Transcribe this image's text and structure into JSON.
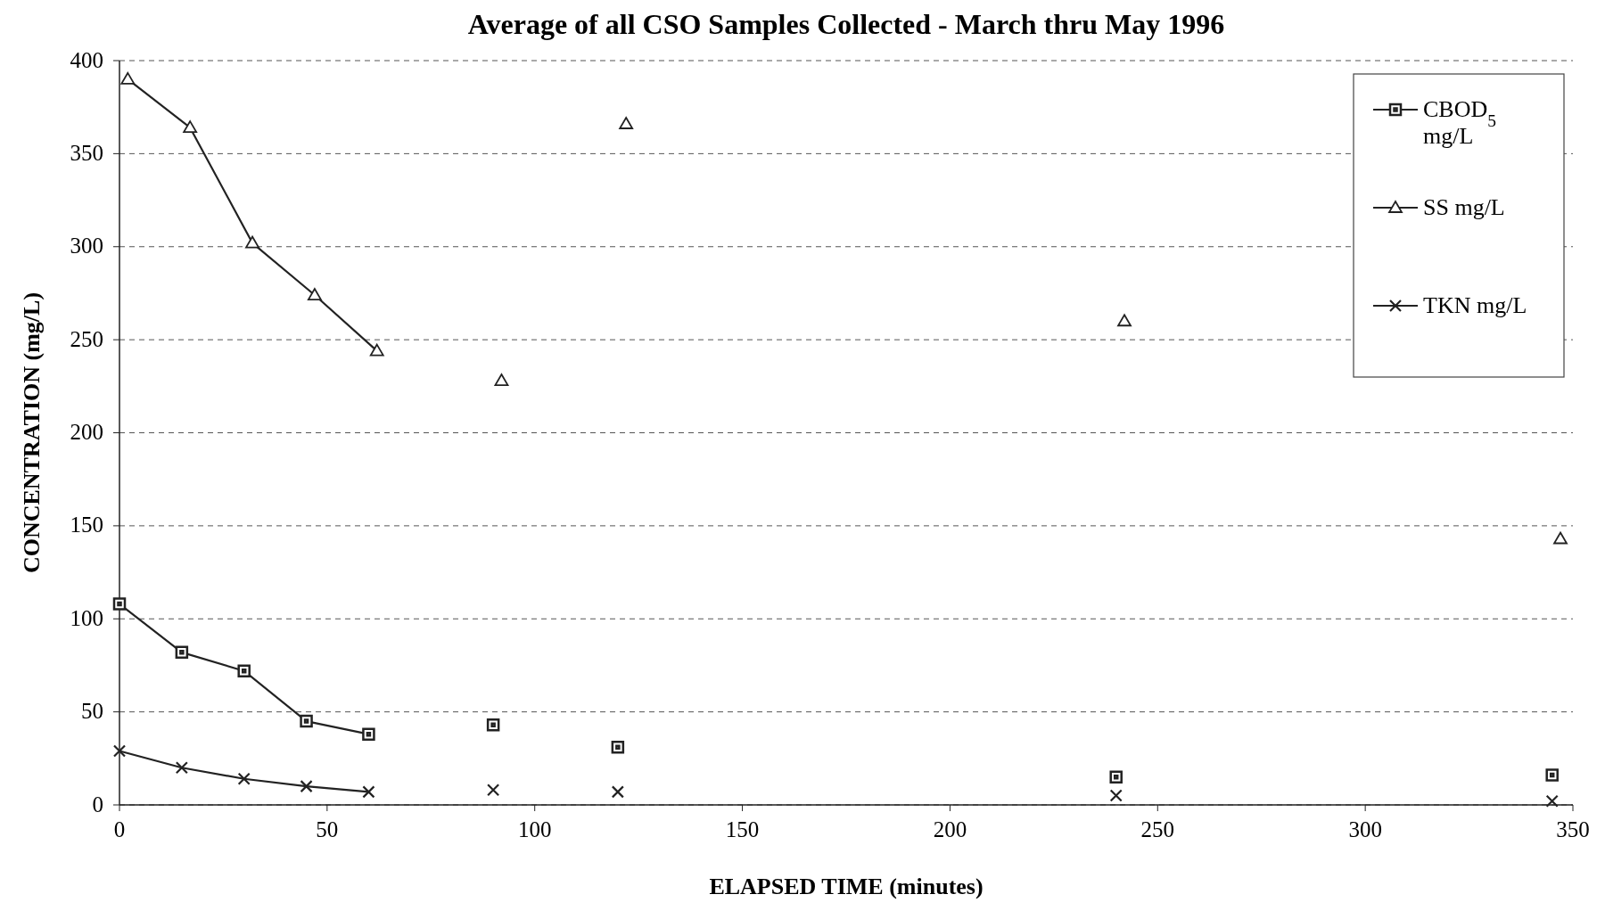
{
  "chart_data": {
    "type": "line",
    "title": "Average of all CSO Samples Collected - March thru May 1996",
    "xlabel": "ELAPSED TIME (minutes)",
    "ylabel": "CONCENTRATION (mg/L)",
    "xlim": [
      0,
      350
    ],
    "xticks": [
      0,
      50,
      100,
      150,
      200,
      250,
      300,
      350
    ],
    "ylim": [
      0,
      400
    ],
    "yticks": [
      0,
      50,
      100,
      150,
      200,
      250,
      300,
      350,
      400
    ],
    "grid": "y",
    "legend": "top right",
    "series": [
      {
        "name": "CBOD$_{5}$ mg/L",
        "color": "#222222",
        "marker": "square",
        "x": [
          0,
          15,
          30,
          45,
          60
        ],
        "values": [
          108,
          82,
          72,
          45,
          38
        ]
      },
      {
        "name": "SS mg/L",
        "color": "#222222",
        "marker": "triangle",
        "x": [
          2,
          17,
          32,
          47,
          62
        ],
        "values": [
          390,
          364,
          302,
          274,
          244
        ]
      },
      {
        "name": "TKN mg/L",
        "color": "#222222",
        "marker": "cross",
        "x": [
          0,
          15,
          30,
          45,
          60
        ],
        "values": [
          29,
          20,
          14,
          10,
          7
        ]
      },
      {
        "type": "scatter",
        "color": "#222222",
        "marker": "square",
        "x": [
          90,
          120,
          240,
          345
        ],
        "values": [
          43,
          31,
          15,
          16
        ]
      },
      {
        "type": "scatter",
        "color": "#222222",
        "marker": "triangle",
        "x": [
          92,
          122,
          242,
          347
        ],
        "values": [
          228,
          366,
          260,
          143
        ]
      },
      {
        "type": "scatter",
        "color": "#222222",
        "marker": "cross",
        "x": [
          90,
          120,
          240,
          345
        ],
        "values": [
          8,
          7,
          5,
          2
        ]
      }
    ]
  }
}
